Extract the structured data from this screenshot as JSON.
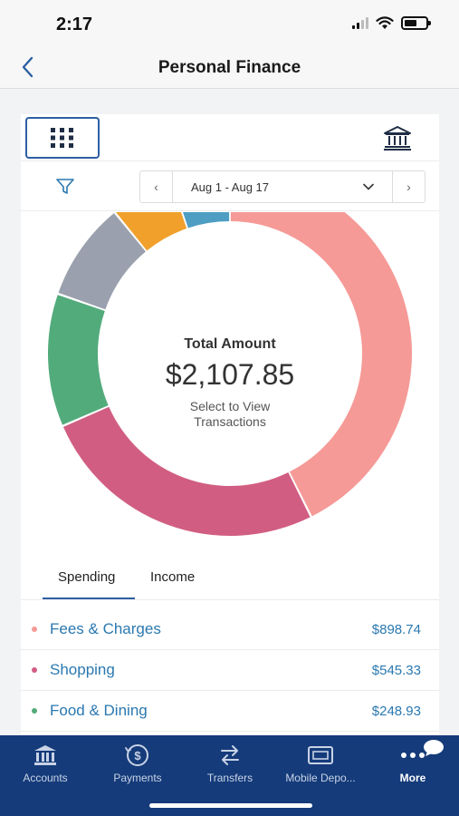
{
  "status_bar": {
    "time": "2:17"
  },
  "header": {
    "title": "Personal Finance"
  },
  "date_filter": {
    "range": "Aug 1 - Aug 17"
  },
  "summary": {
    "title": "Total Amount",
    "amount": "$2,107.85",
    "subtitle": "Select to View Transactions"
  },
  "tabs": {
    "spending": "Spending",
    "income": "Income",
    "active": "spending"
  },
  "categories": [
    {
      "label": "Fees & Charges",
      "amount": "$898.74",
      "color": "#f59a97"
    },
    {
      "label": "Shopping",
      "amount": "$545.33",
      "color": "#d15e82"
    },
    {
      "label": "Food & Dining",
      "amount": "$248.93",
      "color": "#52ab7b"
    }
  ],
  "chart_data": {
    "type": "pie",
    "title": "Total Amount",
    "segments": [
      {
        "value": 898.74,
        "color": "#f59a97"
      },
      {
        "value": 545.33,
        "color": "#d15e82"
      },
      {
        "value": 248.93,
        "color": "#52ab7b"
      },
      {
        "value": 185,
        "color": "#9aa0ad"
      },
      {
        "value": 120,
        "color": "#f0a02b"
      },
      {
        "value": 109.85,
        "color": "#4d9ec2"
      }
    ]
  },
  "tabbar": {
    "items": [
      {
        "label": "Accounts",
        "icon": "bank-icon"
      },
      {
        "label": "Payments",
        "icon": "payments-icon"
      },
      {
        "label": "Transfers",
        "icon": "transfers-icon"
      },
      {
        "label": "Mobile Depo...",
        "icon": "mobile-deposit-icon"
      },
      {
        "label": "More",
        "icon": "more-icon"
      }
    ],
    "active": "More"
  }
}
